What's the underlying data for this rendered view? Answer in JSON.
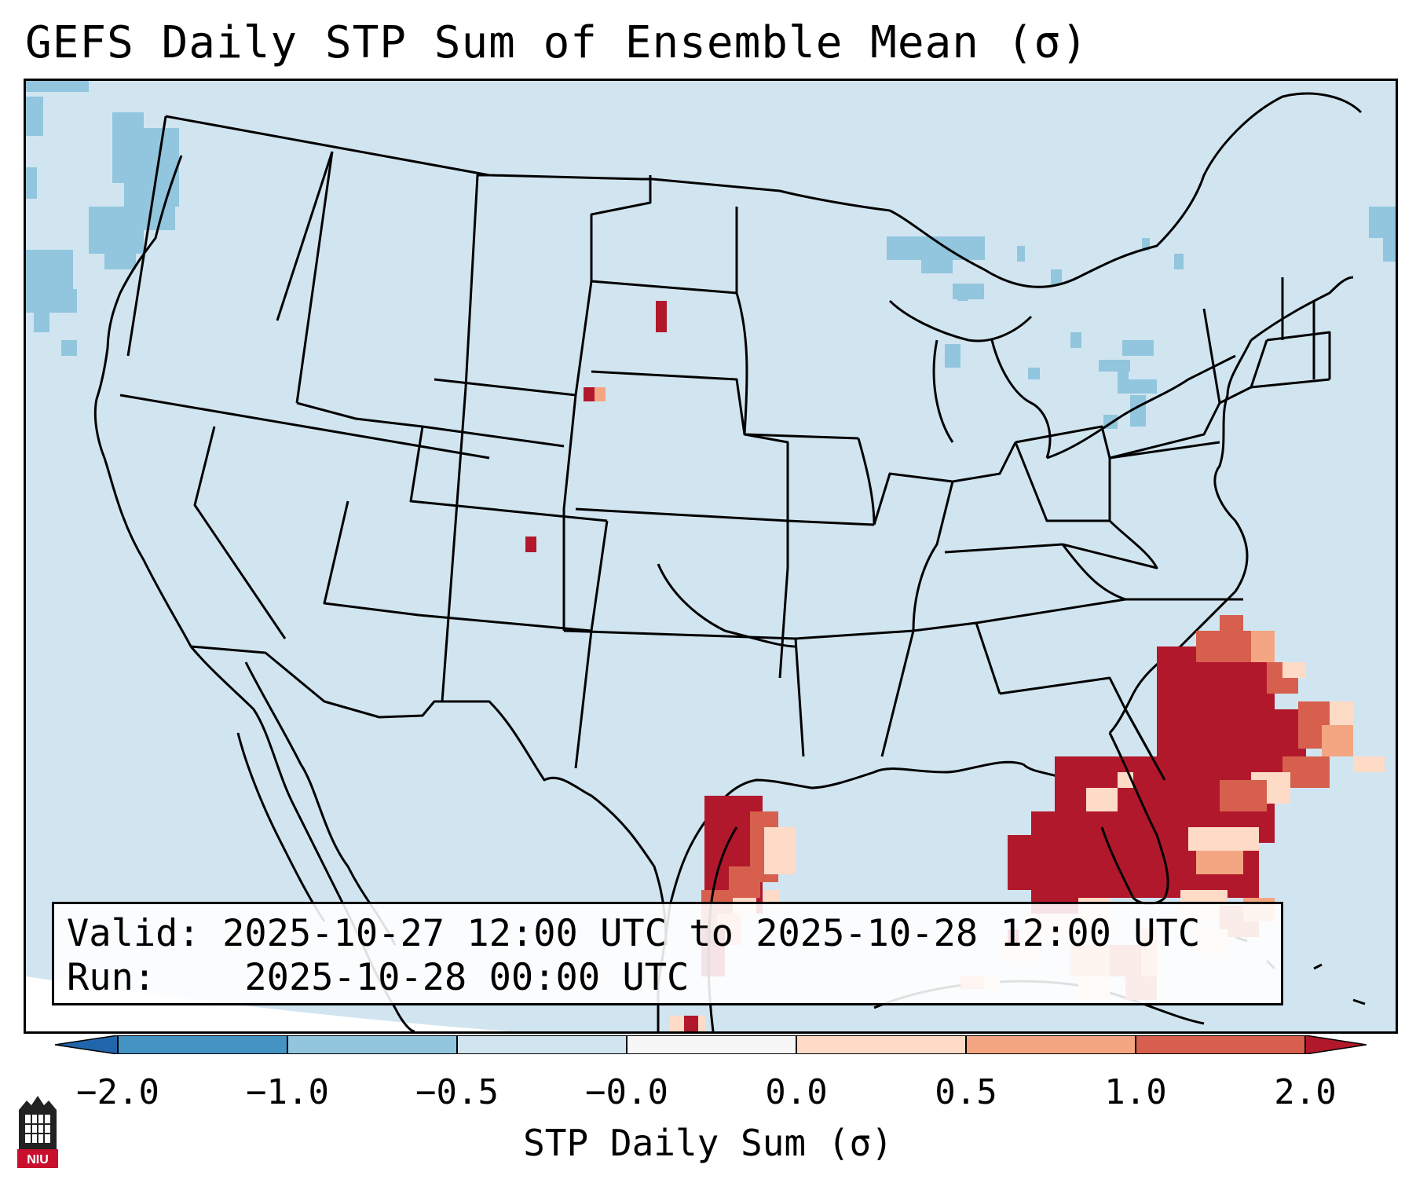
{
  "title": "GEFS Daily STP Sum of Ensemble Mean (σ)",
  "info": {
    "valid_label": "Valid:",
    "valid_range": "2025-10-27 12:00 UTC to 2025-10-28 12:00 UTC",
    "run_label": "Run:",
    "run_time": "2025-10-28 00:00 UTC"
  },
  "colorbar": {
    "label": "STP Daily Sum (σ)",
    "ticks": [
      "−2.0",
      "−1.0",
      "−0.5",
      "−0.0",
      "0.0",
      "0.5",
      "1.0",
      "2.0"
    ],
    "colors": {
      "under": "#2166ac",
      "neg_2_to_1": "#4393c3",
      "neg_1_to_05": "#92c5de",
      "neg_05_to_0": "#d1e5f0",
      "zero_band": "#f7f7f7",
      "pos_0_to_05": "#fddbc7",
      "pos_05_to_1": "#f4a582",
      "pos_1_to_2": "#d6604d",
      "over": "#b2182b"
    }
  },
  "map": {
    "background_color": "#d1e5f0",
    "outside_domain_color": "#ffffff",
    "line_color": "#000000"
  },
  "logo": {
    "text": "NIU",
    "color": "#c8102e"
  }
}
